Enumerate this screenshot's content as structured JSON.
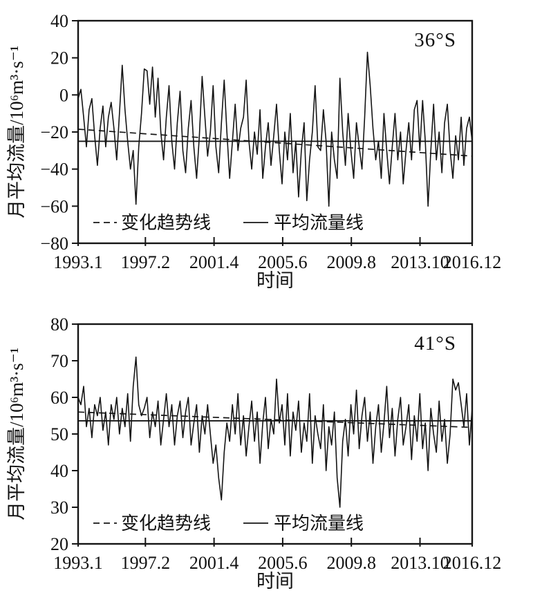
{
  "figure": {
    "background_color": "#ffffff",
    "line_color": "#141414"
  },
  "chart_data": [
    {
      "type": "line",
      "title": "36°S",
      "xlabel": "时间",
      "ylabel": "月平均流量/10⁶m³·s⁻¹",
      "ylim": [
        -80,
        40
      ],
      "yticks": [
        40,
        20,
        0,
        -20,
        -40,
        -60,
        -80
      ],
      "xtick_labels": [
        "1993.1",
        "1997.2",
        "2001.4",
        "2005.6",
        "2009.8",
        "2013.10",
        "2016.12"
      ],
      "xtick_months": [
        0,
        49,
        99,
        149,
        199,
        249,
        287
      ],
      "x_range_months": [
        0,
        287
      ],
      "grid": false,
      "legend_position": "bottom-inside",
      "legend": [
        {
          "label": "变化趋势线",
          "style": "dashed"
        },
        {
          "label": "平均流量线",
          "style": "solid"
        }
      ],
      "mean_line_value": -25,
      "trend_line": {
        "start": -18.5,
        "end": -33
      },
      "series": [
        {
          "name": "月平均流量(36°S)",
          "values": [
            -2,
            3,
            -12,
            -28,
            -8,
            -2,
            -22,
            -38,
            -18,
            -6,
            -28,
            -12,
            -4,
            -18,
            -35,
            -10,
            16,
            -8,
            -25,
            -40,
            -30,
            -59,
            -28,
            -10,
            14,
            13,
            -5,
            15,
            -12,
            9,
            -20,
            -35,
            -12,
            5,
            -25,
            -40,
            -15,
            2,
            -30,
            -42,
            -18,
            -3,
            -28,
            -45,
            -22,
            10,
            -12,
            -33,
            -20,
            5,
            -28,
            -42,
            -15,
            8,
            -20,
            -45,
            -25,
            -5,
            -30,
            -18,
            -12,
            8,
            -25,
            -40,
            -20,
            -32,
            -8,
            -45,
            -28,
            -15,
            -38,
            -22,
            -5,
            -30,
            -48,
            -20,
            -35,
            -10,
            -42,
            -25,
            -55,
            -30,
            -15,
            -57,
            -35,
            -20,
            5,
            -28,
            -30,
            -8,
            -25,
            -60,
            -20,
            -35,
            -45,
            9,
            -20,
            -38,
            -10,
            -30,
            -45,
            -15,
            -28,
            -40,
            -12,
            23,
            5,
            -18,
            -35,
            -25,
            -45,
            -10,
            -30,
            -48,
            -28,
            -10,
            -35,
            -20,
            -48,
            -30,
            -15,
            -35,
            -8,
            -3,
            -30,
            -3,
            -25,
            -60,
            -30,
            -5,
            -35,
            -20,
            -42,
            -15,
            -5,
            -30,
            -45,
            -22,
            -35,
            -12,
            -38,
            -18,
            -12,
            -25
          ]
        }
      ]
    },
    {
      "type": "line",
      "title": "41°S",
      "xlabel": "时间",
      "ylabel": "月平均流量/10⁶m³·s⁻¹",
      "ylim": [
        20,
        80
      ],
      "yticks": [
        80,
        70,
        60,
        50,
        40,
        30,
        20
      ],
      "xtick_labels": [
        "1993.1",
        "1997.2",
        "2001.4",
        "2005.6",
        "2009.8",
        "2013.10",
        "2016.12"
      ],
      "xtick_months": [
        0,
        49,
        99,
        149,
        199,
        249,
        287
      ],
      "x_range_months": [
        0,
        287
      ],
      "grid": false,
      "legend_position": "bottom-inside",
      "legend": [
        {
          "label": "变化趋势线",
          "style": "dashed"
        },
        {
          "label": "平均流量线",
          "style": "solid"
        }
      ],
      "mean_line_value": 53.6,
      "trend_line": {
        "start": 56,
        "end": 51.8
      },
      "series": [
        {
          "name": "月平均流量(41°S)",
          "values": [
            60,
            58,
            63,
            52,
            57,
            49,
            58,
            55,
            60,
            51,
            56,
            47,
            58,
            54,
            60,
            50,
            57,
            52,
            61,
            48,
            63,
            71,
            58,
            55,
            57,
            60,
            49,
            56,
            52,
            59,
            47,
            54,
            61,
            52,
            58,
            47,
            55,
            59,
            49,
            56,
            60,
            47,
            53,
            58,
            45,
            55,
            50,
            58,
            50,
            42,
            47,
            38,
            32,
            45,
            53,
            48,
            58,
            50,
            61,
            47,
            55,
            44,
            52,
            59,
            48,
            56,
            42,
            53,
            60,
            46,
            54,
            50,
            65,
            53,
            58,
            47,
            61,
            44,
            56,
            51,
            59,
            45,
            53,
            48,
            61,
            42,
            55,
            50,
            46,
            58,
            40,
            52,
            47,
            56,
            38,
            30,
            48,
            54,
            44,
            58,
            50,
            62,
            46,
            55,
            60,
            48,
            56,
            42,
            52,
            58,
            45,
            53,
            63,
            49,
            57,
            44,
            54,
            60,
            47,
            52,
            58,
            43,
            55,
            48,
            61,
            46,
            53,
            40,
            57,
            50,
            45,
            59,
            48,
            54,
            42,
            50,
            65,
            62,
            64,
            58,
            52,
            61,
            47,
            57
          ]
        }
      ]
    }
  ]
}
